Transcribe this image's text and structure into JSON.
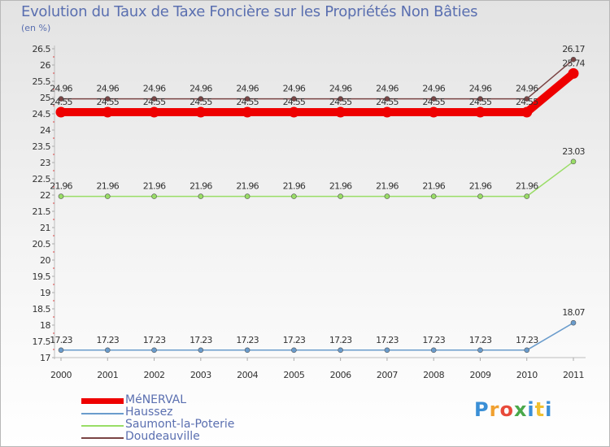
{
  "title": "Evolution du Taux de Taxe Foncière sur les Propriétés Non Bâties",
  "subtitle": "(en %)",
  "logo": {
    "text": "Proxiti",
    "colors": [
      "#3a8fd6",
      "#f0a030",
      "#e84a3a",
      "#4aa84a",
      "#3a8fd6",
      "#f0c030",
      "#3a8fd6"
    ]
  },
  "chart_data": {
    "type": "line",
    "title": "Evolution du Taux de Taxe Foncière sur les Propriétés Non Bâties",
    "ylabel": "(en %)",
    "xlabel": "",
    "x": [
      "2000",
      "2001",
      "2002",
      "2003",
      "2004",
      "2005",
      "2006",
      "2007",
      "2008",
      "2009",
      "2010",
      "2011"
    ],
    "ylim": [
      17,
      26.5
    ],
    "yticks": [
      "17",
      "17.5",
      "18",
      "18.5",
      "19",
      "19.5",
      "20",
      "20.5",
      "21",
      "21.5",
      "22",
      "22.5",
      "23",
      "23.5",
      "24",
      "24.5",
      "25",
      "25.5",
      "26",
      "26.5"
    ],
    "series": [
      {
        "name": "MéNERVAL",
        "color": "#ee0000",
        "values": [
          24.55,
          24.55,
          24.55,
          24.55,
          24.55,
          24.55,
          24.55,
          24.55,
          24.55,
          24.55,
          24.55,
          25.74
        ],
        "labels": [
          "24.55",
          "24.55",
          "24.55",
          "24.55",
          "24.55",
          "24.55",
          "24.55",
          "24.55",
          "24.55",
          "24.55",
          "24.55",
          "25.74"
        ]
      },
      {
        "name": "Haussez",
        "color": "#6a9ccc",
        "values": [
          17.23,
          17.23,
          17.23,
          17.23,
          17.23,
          17.23,
          17.23,
          17.23,
          17.23,
          17.23,
          17.23,
          18.07
        ],
        "labels": [
          "17.23",
          "17.23",
          "17.23",
          "17.23",
          "17.23",
          "17.23",
          "17.23",
          "17.23",
          "17.23",
          "17.23",
          "17.23",
          "18.07"
        ]
      },
      {
        "name": "Saumont-la-Poterie",
        "color": "#99dd66",
        "values": [
          21.96,
          21.96,
          21.96,
          21.96,
          21.96,
          21.96,
          21.96,
          21.96,
          21.96,
          21.96,
          21.96,
          23.03
        ],
        "labels": [
          "21.96",
          "21.96",
          "21.96",
          "21.96",
          "21.96",
          "21.96",
          "21.96",
          "21.96",
          "21.96",
          "21.96",
          "21.96",
          "23.03"
        ]
      },
      {
        "name": "Doudeauville",
        "color": "#7a4444",
        "values": [
          24.96,
          24.96,
          24.96,
          24.96,
          24.96,
          24.96,
          24.96,
          24.96,
          24.96,
          24.96,
          24.96,
          26.17
        ],
        "labels": [
          "24.96",
          "24.96",
          "24.96",
          "24.96",
          "24.96",
          "24.96",
          "24.96",
          "24.96",
          "24.96",
          "24.96",
          "24.96",
          "26.17"
        ]
      }
    ],
    "legend": [
      "MéNERVAL",
      "Haussez",
      "Saumont-la-Poterie",
      "Doudeauville"
    ],
    "legend_position": "bottom-left"
  }
}
